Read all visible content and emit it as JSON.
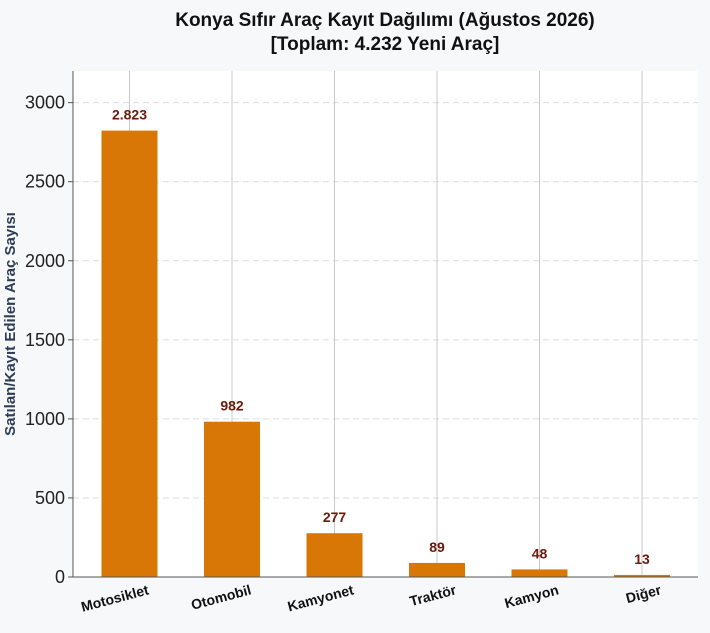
{
  "chart_data": {
    "type": "bar",
    "title_line1": "Konya Sıfır Araç Kayıt Dağılımı (Ağustos 2026)",
    "title_line2": "[Toplam: 4.232 Yeni Araç]",
    "xlabel": "",
    "ylabel": "Satılan/Kayıt Edilen Araç Sayısı",
    "ylim": [
      0,
      3200
    ],
    "yticks": [
      0,
      500,
      1000,
      1500,
      2000,
      2500,
      3000
    ],
    "categories": [
      "Motosiklet",
      "Otomobil",
      "Kamyonet",
      "Traktör",
      "Kamyon",
      "Diğer"
    ],
    "values": [
      2823,
      982,
      277,
      89,
      48,
      13
    ],
    "value_labels": [
      "2.823",
      "982",
      "277",
      "89",
      "48",
      "13"
    ],
    "bar_color": "#d97706",
    "grid": true
  }
}
